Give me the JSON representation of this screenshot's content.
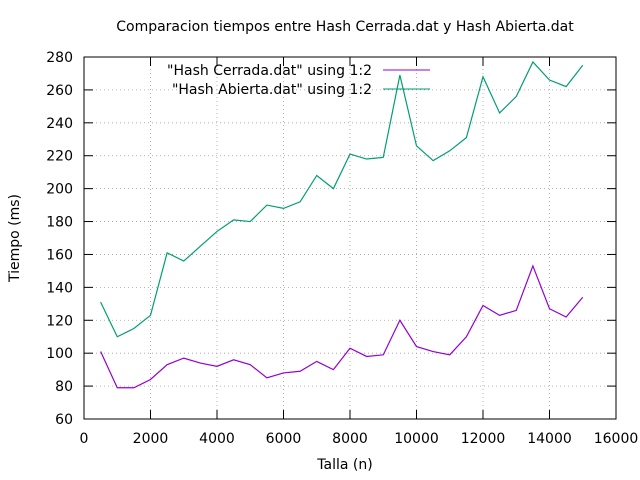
{
  "chart_data": {
    "type": "line",
    "title": "Comparacion tiempos entre Hash Cerrada.dat y Hash Abierta.dat",
    "xlabel": "Talla (n)",
    "ylabel": "Tiempo (ms)",
    "xlim": [
      0,
      16000
    ],
    "ylim": [
      60,
      280
    ],
    "x_ticks": [
      0,
      2000,
      4000,
      6000,
      8000,
      10000,
      12000,
      14000,
      16000
    ],
    "y_ticks": [
      60,
      80,
      100,
      120,
      140,
      160,
      180,
      200,
      220,
      240,
      260,
      280
    ],
    "grid": true,
    "legend_position": "top-right",
    "series": [
      {
        "name": "\"Hash Cerrada.dat\" using 1:2",
        "color": "#9400d3",
        "x": [
          500,
          1000,
          1500,
          2000,
          2500,
          3000,
          3500,
          4000,
          4500,
          5000,
          5500,
          6000,
          6500,
          7000,
          7500,
          8000,
          8500,
          9000,
          9500,
          10000,
          10500,
          11000,
          11500,
          12000,
          12500,
          13000,
          13500,
          14000,
          14500,
          15000
        ],
        "y": [
          101,
          79,
          79,
          84,
          93,
          97,
          94,
          92,
          96,
          93,
          85,
          88,
          89,
          95,
          90,
          103,
          98,
          99,
          120,
          104,
          101,
          99,
          110,
          129,
          123,
          126,
          153,
          127,
          122,
          134
        ]
      },
      {
        "name": "\"Hash Abierta.dat\" using 1:2",
        "color": "#009e73",
        "x": [
          500,
          1000,
          1500,
          2000,
          2500,
          3000,
          3500,
          4000,
          4500,
          5000,
          5500,
          6000,
          6500,
          7000,
          7500,
          8000,
          8500,
          9000,
          9500,
          10000,
          10500,
          11000,
          11500,
          12000,
          12500,
          13000,
          13500,
          14000,
          14500,
          15000
        ],
        "y": [
          131,
          110,
          115,
          123,
          161,
          156,
          165,
          174,
          181,
          180,
          190,
          188,
          192,
          208,
          200,
          221,
          218,
          219,
          269,
          226,
          217,
          223,
          231,
          268,
          246,
          256,
          277,
          266,
          262,
          275
        ]
      }
    ]
  }
}
